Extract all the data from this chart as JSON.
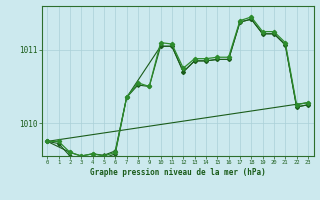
{
  "title": "Graphe pression niveau de la mer (hPa)",
  "bg_color": "#cce9ee",
  "grid_color": "#aad0d8",
  "line_color_dark": "#1a5c1a",
  "line_color_mid": "#2d8c2d",
  "xlim": [
    -0.5,
    23.5
  ],
  "ylim": [
    1009.55,
    1011.6
  ],
  "yticks": [
    1010,
    1011
  ],
  "xticks": [
    0,
    1,
    2,
    3,
    4,
    5,
    6,
    7,
    8,
    9,
    10,
    11,
    12,
    13,
    14,
    15,
    16,
    17,
    18,
    19,
    20,
    21,
    22,
    23
  ],
  "series1_x": [
    0,
    1,
    2,
    3,
    4,
    5,
    6,
    7,
    8,
    9,
    10,
    11,
    12,
    13,
    14,
    15,
    16,
    17,
    18,
    19,
    20,
    21,
    22,
    23
  ],
  "series1_y": [
    1009.75,
    1009.75,
    1009.6,
    1009.55,
    1009.58,
    1009.55,
    1009.6,
    1010.35,
    1010.55,
    1010.5,
    1011.1,
    1011.08,
    1010.75,
    1010.88,
    1010.88,
    1010.9,
    1010.9,
    1011.4,
    1011.45,
    1011.25,
    1011.25,
    1011.1,
    1010.25,
    1010.28
  ],
  "series2_x": [
    0,
    1,
    2,
    3,
    4,
    5,
    6,
    7,
    8,
    9,
    10,
    11,
    12,
    13,
    14,
    15,
    16,
    17,
    18,
    19,
    20,
    21,
    22,
    23
  ],
  "series2_y": [
    1009.75,
    1009.72,
    1009.55,
    1009.5,
    1009.52,
    1009.52,
    1009.58,
    1010.35,
    1010.52,
    1010.5,
    1011.05,
    1011.05,
    1010.7,
    1010.85,
    1010.85,
    1010.87,
    1010.87,
    1011.38,
    1011.42,
    1011.22,
    1011.22,
    1011.07,
    1010.22,
    1010.25
  ],
  "series3_x": [
    0,
    2,
    3,
    4,
    5,
    6,
    7,
    10,
    11,
    12,
    13,
    14,
    15,
    16,
    17,
    18,
    19,
    20,
    21,
    22,
    23
  ],
  "series3_y": [
    1009.75,
    1009.6,
    1009.55,
    1009.58,
    1009.56,
    1009.62,
    1010.35,
    1011.05,
    1011.05,
    1010.7,
    1010.85,
    1010.85,
    1010.87,
    1010.87,
    1011.38,
    1011.42,
    1011.22,
    1011.22,
    1011.07,
    1010.22,
    1010.25
  ],
  "series4_x": [
    0,
    23
  ],
  "series4_y": [
    1009.75,
    1010.28
  ]
}
